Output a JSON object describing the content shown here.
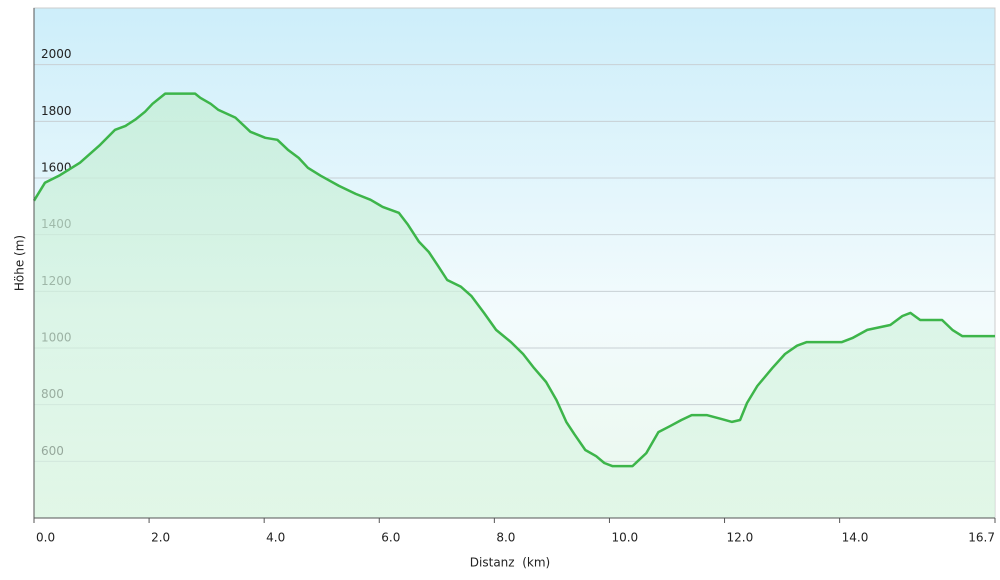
{
  "chart_data": {
    "type": "area",
    "x_label": "Distanz  (km)",
    "y_label": "Höhe (m)",
    "x": [
      0,
      0.19,
      0.45,
      0.8,
      1.15,
      1.41,
      1.59,
      1.76,
      1.93,
      2.06,
      2.28,
      2.8,
      2.89,
      3.07,
      3.2,
      3.5,
      3.76,
      4.02,
      4.23,
      4.41,
      4.6,
      4.76,
      4.98,
      5.3,
      5.59,
      5.85,
      6.06,
      6.34,
      6.5,
      6.69,
      6.86,
      7.02,
      7.18,
      7.42,
      7.6,
      7.82,
      8.03,
      8.29,
      8.5,
      8.69,
      8.9,
      9.08,
      9.25,
      9.39,
      9.58,
      9.77,
      9.91,
      10.05,
      10.4,
      10.64,
      10.85,
      11.05,
      11.25,
      11.43,
      11.69,
      11.95,
      12.13,
      12.27,
      12.39,
      12.57,
      12.83,
      13.05,
      13.26,
      13.43,
      14.04,
      14.22,
      14.48,
      14.88,
      15.09,
      15.23,
      15.4,
      15.78,
      15.96,
      16.13,
      16.7
    ],
    "values": [
      1520,
      1583,
      1610,
      1654,
      1717,
      1770,
      1784,
      1806,
      1834,
      1862,
      1898,
      1898,
      1883,
      1862,
      1841,
      1813,
      1763,
      1742,
      1735,
      1700,
      1671,
      1636,
      1608,
      1572,
      1544,
      1523,
      1498,
      1477,
      1435,
      1375,
      1339,
      1290,
      1240,
      1216,
      1184,
      1124,
      1064,
      1021,
      979,
      929,
      880,
      816,
      739,
      696,
      640,
      618,
      594,
      583,
      583,
      629,
      703,
      724,
      746,
      763,
      763,
      749,
      739,
      746,
      806,
      866,
      929,
      979,
      1008,
      1021,
      1021,
      1035,
      1064,
      1081,
      1113,
      1124,
      1099,
      1099,
      1064,
      1042,
      1042
    ],
    "color": "#3db54a",
    "xlim": [
      0,
      16.7
    ],
    "ylim": [
      400,
      2200
    ],
    "xticks": [
      {
        "value": 0,
        "label": "0.0"
      },
      {
        "value": 2,
        "label": "2.0"
      },
      {
        "value": 4,
        "label": "4.0"
      },
      {
        "value": 6,
        "label": "6.0"
      },
      {
        "value": 8,
        "label": "8.0"
      },
      {
        "value": 10,
        "label": "10.0"
      },
      {
        "value": 12,
        "label": "12.0"
      },
      {
        "value": 14,
        "label": "14.0"
      },
      16.7
    ],
    "yticks": [
      600,
      800,
      1000,
      1200,
      1400,
      1600,
      1800,
      2000
    ],
    "grid": true
  }
}
